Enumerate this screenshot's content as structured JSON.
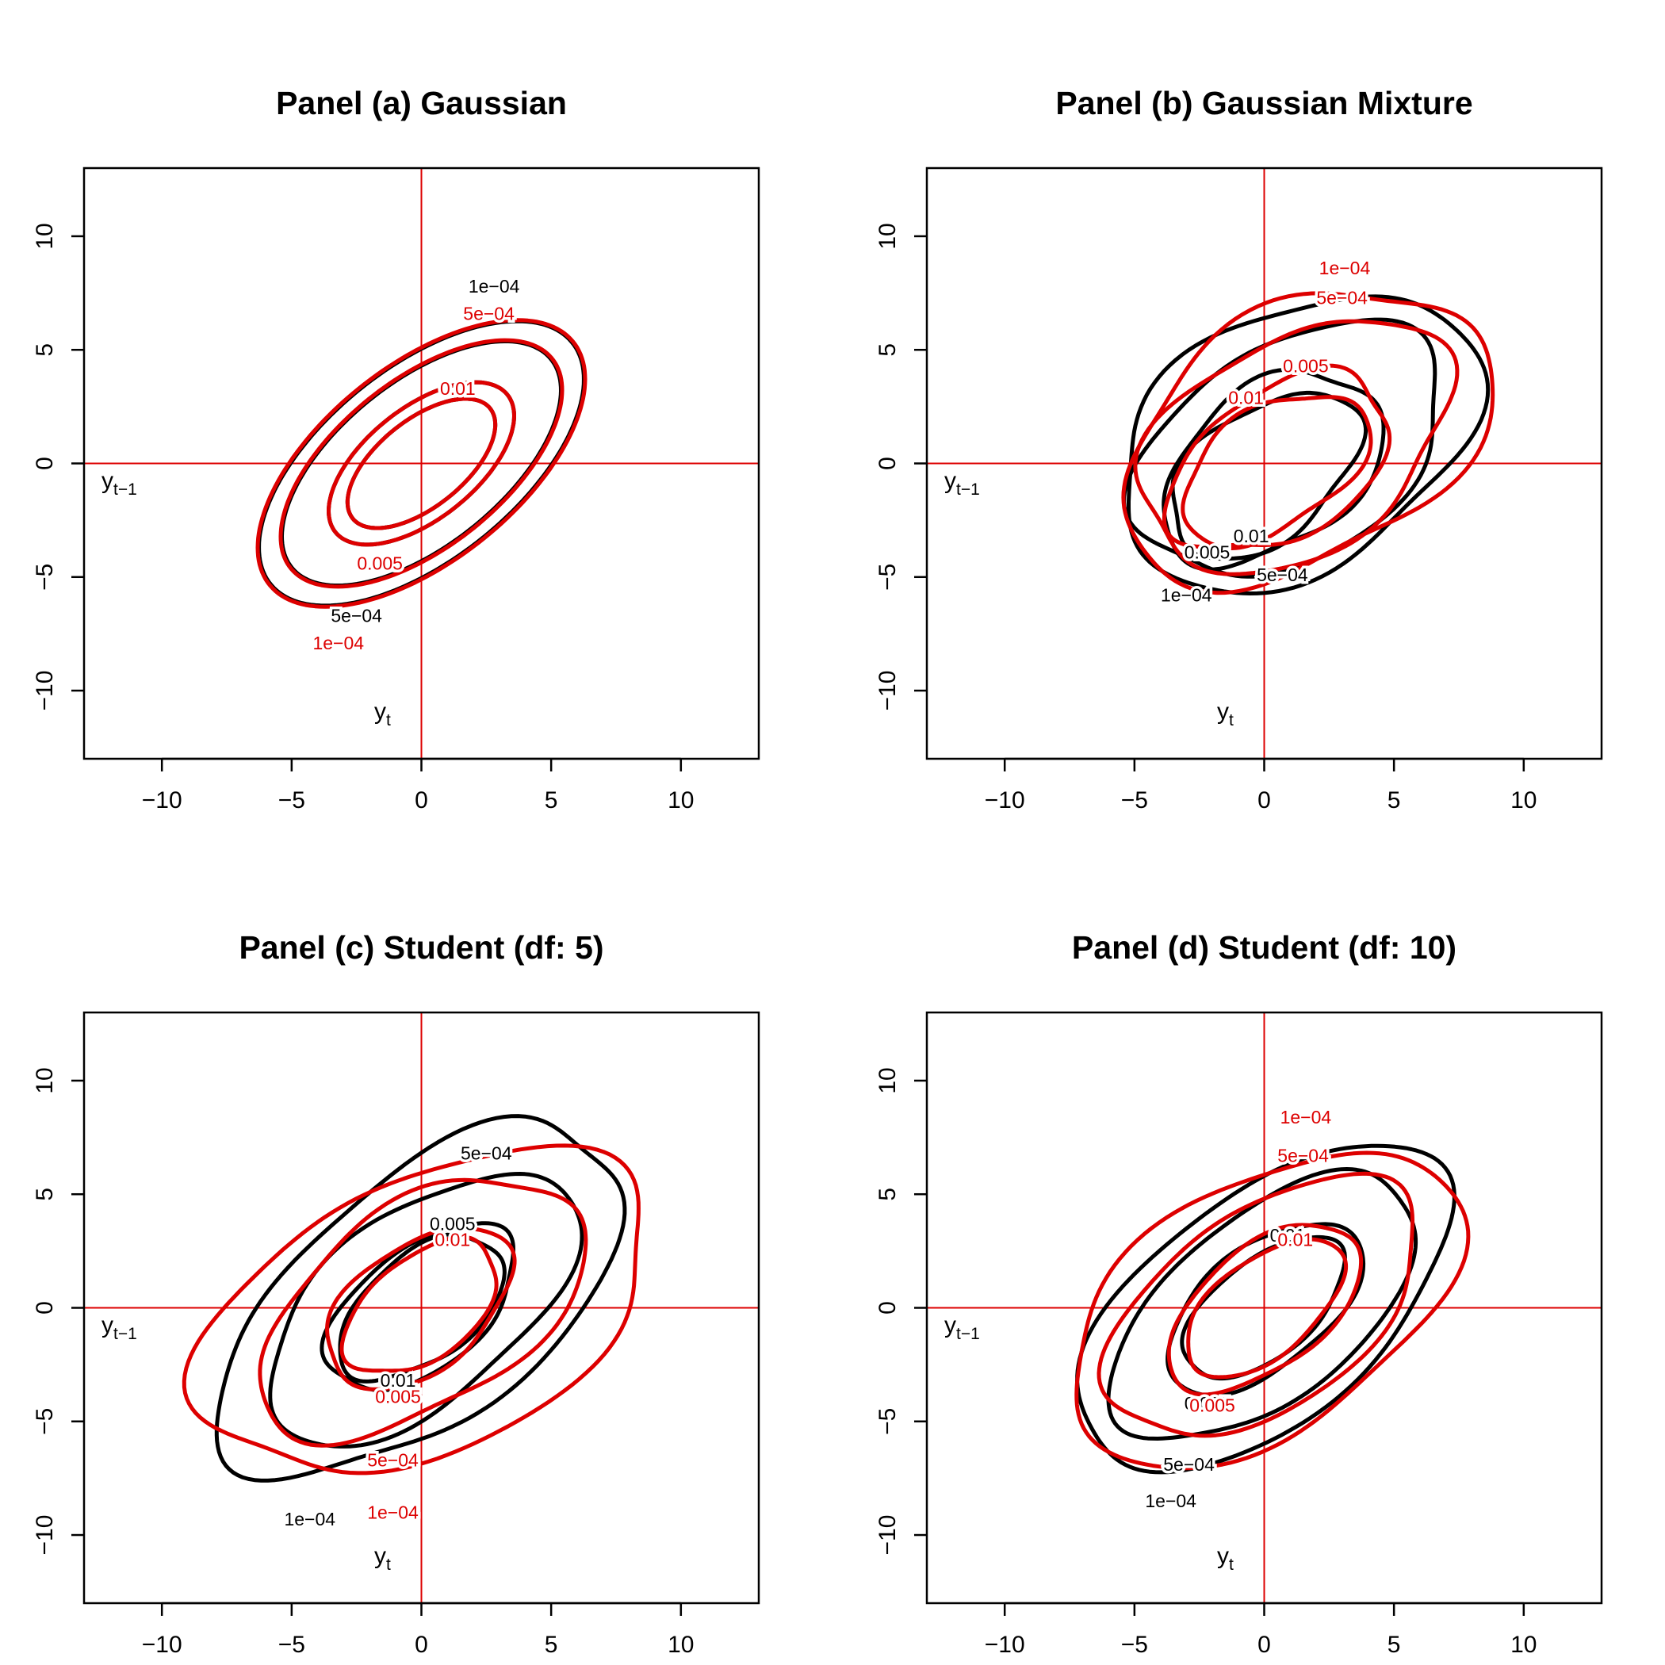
{
  "colors": {
    "empirical": "#000000",
    "model": "#dd0000",
    "reference_lines": "#dd0000",
    "axes": "#000000"
  },
  "chart_data": [
    {
      "type": "contour",
      "title": "Panel (a) Gaussian",
      "xlabel": "y",
      "xlabel_sub": "t",
      "ylabel": "y",
      "ylabel_sub": "t−1",
      "xlim": [
        -13,
        13
      ],
      "ylim": [
        -13,
        13
      ],
      "xticks": [
        -10,
        -5,
        0,
        5,
        10
      ],
      "yticks": [
        -10,
        -5,
        0,
        5,
        10
      ],
      "xtick_labels": [
        "−10",
        "−5",
        "0",
        "5",
        "10"
      ],
      "ytick_labels": [
        "−10",
        "−5",
        "0",
        "5",
        "10"
      ],
      "reference_lines": {
        "x": 0,
        "y": 0
      },
      "series": [
        {
          "color": "black",
          "contours": [
            {
              "label": "1e−04",
              "label_at": [
                2.8,
                7.8
              ],
              "cx": 0,
              "cy": 0,
              "a": 7.9,
              "b": 4.0,
              "angle": 45,
              "wobble": 0.0
            },
            {
              "label": "5e−04",
              "label_at": [
                -2.5,
                -6.7
              ],
              "cx": 0,
              "cy": 0,
              "a": 6.8,
              "b": 3.4,
              "angle": 45,
              "wobble": 0.0
            },
            {
              "label": "0.005",
              "label_at": [
                -1.7,
                -4.4
              ],
              "cx": 0,
              "cy": 0,
              "a": 4.5,
              "b": 2.3,
              "angle": 45,
              "wobble": 0.0
            },
            {
              "label": "0.01",
              "label_at": [
                1.4,
                3.3
              ],
              "cx": 0,
              "cy": 0,
              "a": 3.6,
              "b": 1.8,
              "angle": 45,
              "wobble": 0.0
            }
          ]
        },
        {
          "color": "red",
          "contours": [
            {
              "label": "1e−04",
              "label_at": [
                -3.2,
                -7.9
              ],
              "cx": 0,
              "cy": 0,
              "a": 7.95,
              "b": 4.05,
              "angle": 45,
              "wobble": 0.0
            },
            {
              "label": "5e−04",
              "label_at": [
                2.6,
                6.6
              ],
              "cx": 0,
              "cy": 0,
              "a": 6.85,
              "b": 3.45,
              "angle": 45,
              "wobble": 0.0
            },
            {
              "label": "0.005",
              "label_at": [
                -1.6,
                -4.4
              ],
              "cx": 0,
              "cy": 0,
              "a": 4.5,
              "b": 2.3,
              "angle": 45,
              "wobble": 0.0
            },
            {
              "label": "0.01",
              "label_at": [
                1.4,
                3.3
              ],
              "cx": 0,
              "cy": 0,
              "a": 3.6,
              "b": 1.8,
              "angle": 45,
              "wobble": 0.0
            }
          ]
        }
      ]
    },
    {
      "type": "contour",
      "title": "Panel (b) Gaussian Mixture",
      "xlabel": "y",
      "xlabel_sub": "t",
      "ylabel": "y",
      "ylabel_sub": "t−1",
      "xlim": [
        -13,
        13
      ],
      "ylim": [
        -13,
        13
      ],
      "xticks": [
        -10,
        -5,
        0,
        5,
        10
      ],
      "yticks": [
        -10,
        -5,
        0,
        5,
        10
      ],
      "xtick_labels": [
        "−10",
        "−5",
        "0",
        "5",
        "10"
      ],
      "ytick_labels": [
        "−10",
        "−5",
        "0",
        "5",
        "10"
      ],
      "reference_lines": {
        "x": 0,
        "y": 0
      },
      "series": [
        {
          "color": "black",
          "contours": [
            {
              "label": "1e−04",
              "label_at": [
                -3.0,
                -5.8
              ],
              "cx": 1.3,
              "cy": 1.0,
              "a": 7.8,
              "b": 5.4,
              "angle": 40,
              "wobble": 0.05
            },
            {
              "label": "5e−04",
              "label_at": [
                0.7,
                -4.9
              ],
              "cx": 1.0,
              "cy": 0.6,
              "a": 6.8,
              "b": 4.5,
              "angle": 40,
              "wobble": 0.05
            },
            {
              "label": "0.005",
              "label_at": [
                -2.2,
                -3.9
              ],
              "cx": 0.3,
              "cy": -0.2,
              "a": 5.0,
              "b": 3.3,
              "angle": 45,
              "wobble": 0.06
            },
            {
              "label": "0.01",
              "label_at": [
                -0.5,
                -3.2
              ],
              "cx": 0.0,
              "cy": -0.5,
              "a": 4.4,
              "b": 2.7,
              "angle": 45,
              "wobble": 0.06
            }
          ]
        },
        {
          "color": "red",
          "contours": [
            {
              "label": "1e−04",
              "label_at": [
                3.1,
                8.6
              ],
              "cx": 1.6,
              "cy": 1.2,
              "a": 8.0,
              "b": 5.3,
              "angle": 38,
              "wobble": 0.06
            },
            {
              "label": "5e−04",
              "label_at": [
                3.0,
                7.3
              ],
              "cx": 1.2,
              "cy": 0.8,
              "a": 6.8,
              "b": 4.5,
              "angle": 40,
              "wobble": 0.06
            },
            {
              "label": "0.005",
              "label_at": [
                1.6,
                4.3
              ],
              "cx": 0.6,
              "cy": 0.0,
              "a": 4.9,
              "b": 3.1,
              "angle": 40,
              "wobble": 0.06
            },
            {
              "label": "0.01",
              "label_at": [
                -0.7,
                2.9
              ],
              "cx": 0.4,
              "cy": -0.2,
              "a": 4.2,
              "b": 2.5,
              "angle": 40,
              "wobble": 0.06
            }
          ]
        }
      ]
    },
    {
      "type": "contour",
      "title": "Panel (c) Student (df: 5)",
      "xlabel": "y",
      "xlabel_sub": "t",
      "ylabel": "y",
      "ylabel_sub": "t−1",
      "xlim": [
        -13,
        13
      ],
      "ylim": [
        -13,
        13
      ],
      "xticks": [
        -10,
        -5,
        0,
        5,
        10
      ],
      "yticks": [
        -10,
        -5,
        0,
        5,
        10
      ],
      "xtick_labels": [
        "−10",
        "−5",
        "0",
        "5",
        "10"
      ],
      "ytick_labels": [
        "−10",
        "−5",
        "0",
        "5",
        "10"
      ],
      "reference_lines": {
        "x": 0,
        "y": 0
      },
      "series": [
        {
          "color": "black",
          "contours": [
            {
              "label": "1e−04",
              "label_at": [
                -4.3,
                -9.3
              ],
              "cx": 0.0,
              "cy": 0.3,
              "a": 9.8,
              "b": 5.0,
              "angle": 45,
              "wobble": 0.05
            },
            {
              "label": "5e−04",
              "label_at": [
                2.5,
                6.8
              ],
              "cx": 0.0,
              "cy": 0.0,
              "a": 7.5,
              "b": 3.9,
              "angle": 45,
              "wobble": 0.04
            },
            {
              "label": "0.005",
              "label_at": [
                1.2,
                3.7
              ],
              "cx": 0.0,
              "cy": 0.0,
              "a": 4.5,
              "b": 2.5,
              "angle": 45,
              "wobble": 0.04
            },
            {
              "label": "0.01",
              "label_at": [
                -0.9,
                -3.2
              ],
              "cx": 0.0,
              "cy": 0.0,
              "a": 3.9,
              "b": 2.2,
              "angle": 45,
              "wobble": 0.04
            }
          ]
        },
        {
          "color": "red",
          "contours": [
            {
              "label": "1e−04",
              "label_at": [
                -1.1,
                -9.0
              ],
              "cx": 0.2,
              "cy": -0.2,
              "a": 9.6,
              "b": 5.8,
              "angle": 32,
              "wobble": 0.05
            },
            {
              "label": "5e−04",
              "label_at": [
                -1.1,
                -6.7
              ],
              "cx": 0.0,
              "cy": 0.0,
              "a": 7.4,
              "b": 4.2,
              "angle": 40,
              "wobble": 0.05
            },
            {
              "label": "0.005",
              "label_at": [
                -0.9,
                -3.9
              ],
              "cx": -0.1,
              "cy": 0.0,
              "a": 4.3,
              "b": 2.6,
              "angle": 45,
              "wobble": 0.04
            },
            {
              "label": "0.01",
              "label_at": [
                1.2,
                3.0
              ],
              "cx": 0.0,
              "cy": 0.0,
              "a": 3.6,
              "b": 2.1,
              "angle": 45,
              "wobble": 0.04
            }
          ]
        }
      ]
    },
    {
      "type": "contour",
      "title": "Panel (d) Student (df: 10)",
      "xlabel": "y",
      "xlabel_sub": "t",
      "ylabel": "y",
      "ylabel_sub": "t−1",
      "xlim": [
        -13,
        13
      ],
      "ylim": [
        -13,
        13
      ],
      "xticks": [
        -10,
        -5,
        0,
        5,
        10
      ],
      "yticks": [
        -10,
        -5,
        0,
        5,
        10
      ],
      "xtick_labels": [
        "−10",
        "−5",
        "0",
        "5",
        "10"
      ],
      "ytick_labels": [
        "−10",
        "−5",
        "0",
        "5",
        "10"
      ],
      "reference_lines": {
        "x": 0,
        "y": 0
      },
      "series": [
        {
          "color": "black",
          "contours": [
            {
              "label": "1e−04",
              "label_at": [
                -3.6,
                -8.5
              ],
              "cx": 0.0,
              "cy": 0.0,
              "a": 9.0,
              "b": 4.7,
              "angle": 45,
              "wobble": 0.03
            },
            {
              "label": "5e−04",
              "label_at": [
                -2.9,
                -6.9
              ],
              "cx": 0.0,
              "cy": 0.0,
              "a": 7.4,
              "b": 3.8,
              "angle": 45,
              "wobble": 0.03
            },
            {
              "label": "0.005",
              "label_at": [
                -2.2,
                -4.2
              ],
              "cx": 0.0,
              "cy": 0.0,
              "a": 4.7,
              "b": 2.5,
              "angle": 45,
              "wobble": 0.03
            },
            {
              "label": "0.01",
              "label_at": [
                0.9,
                3.2
              ],
              "cx": 0.0,
              "cy": 0.0,
              "a": 3.9,
              "b": 2.0,
              "angle": 45,
              "wobble": 0.03
            }
          ]
        },
        {
          "color": "red",
          "contours": [
            {
              "label": "1e−04",
              "label_at": [
                1.6,
                8.4
              ],
              "cx": 0.0,
              "cy": 0.0,
              "a": 8.8,
              "b": 5.2,
              "angle": 40,
              "wobble": 0.04
            },
            {
              "label": "5e−04",
              "label_at": [
                1.5,
                6.7
              ],
              "cx": 0.0,
              "cy": 0.0,
              "a": 7.2,
              "b": 4.1,
              "angle": 42,
              "wobble": 0.04
            },
            {
              "label": "0.005",
              "label_at": [
                -2.0,
                -4.3
              ],
              "cx": 0.0,
              "cy": 0.0,
              "a": 4.6,
              "b": 2.5,
              "angle": 45,
              "wobble": 0.03
            },
            {
              "label": "0.01",
              "label_at": [
                1.2,
                3.0
              ],
              "cx": 0.0,
              "cy": 0.0,
              "a": 3.8,
              "b": 2.0,
              "angle": 45,
              "wobble": 0.03
            }
          ]
        }
      ]
    }
  ]
}
